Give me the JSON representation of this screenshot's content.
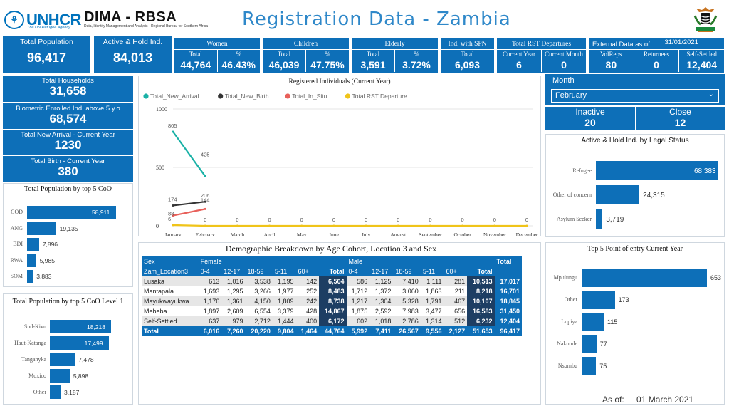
{
  "header": {
    "logo_text": "UNHCR",
    "logo_sub": "The UN Refugee Agency",
    "brand": "DIMA - RBSA",
    "brand_sub": "Data, Identity Management and Analysis - Regional Bureau for Southern Africa",
    "title": "Registration Data - Zambia"
  },
  "kpi": {
    "total_population": {
      "label": "Total Population",
      "value": "96,417"
    },
    "active_hold": {
      "label": "Active & Hold Ind.",
      "value": "84,013"
    },
    "women": {
      "label": "Women",
      "total_label": "Total",
      "pct_label": "%",
      "total": "44,764",
      "pct": "46.43%"
    },
    "children": {
      "label": "Children",
      "total_label": "Total",
      "pct_label": "%",
      "total": "46,039",
      "pct": "47.75%"
    },
    "elderly": {
      "label": "Elderly",
      "total_label": "Total",
      "pct_label": "%",
      "total": "3,591",
      "pct": "3.72%"
    },
    "spn": {
      "label": "Ind. with SPN",
      "total_label": "Total",
      "total": "6,093"
    },
    "rst": {
      "label": "Total RST Departures",
      "cy_label": "Current Year",
      "cm_label": "Current Month",
      "cy": "6",
      "cm": "0"
    },
    "external": {
      "label": "External Data as of",
      "date": "31/01/2021",
      "volreps_label": "VolReps",
      "returnees_label": "Returnees",
      "self_label": "Self-Settled",
      "volreps": "80",
      "returnees": "0",
      "self": "12,404"
    },
    "households": {
      "label": "Total Households",
      "value": "31,658"
    },
    "biometric": {
      "label": "Biometric Enrolled Ind. above 5 y.o",
      "value": "68,574"
    },
    "new_arrival": {
      "label": "Total New Arrival - Current Year",
      "value": "1230"
    },
    "birth": {
      "label": "Total Birth - Current Year",
      "value": "380"
    },
    "inactive": {
      "label": "Inactive",
      "value": "20"
    },
    "close": {
      "label": "Close",
      "value": "12"
    }
  },
  "month_filter": {
    "label": "Month",
    "selected": "February"
  },
  "coo_chart": {
    "title": "Total Population by top 5 CoO",
    "items": [
      {
        "label": "COD",
        "value": 58911,
        "display": "58,911"
      },
      {
        "label": "ANG",
        "value": 19135,
        "display": "19,135"
      },
      {
        "label": "BDI",
        "value": 7896,
        "display": "7,896"
      },
      {
        "label": "RWA",
        "value": 5985,
        "display": "5,985"
      },
      {
        "label": "SOM",
        "value": 3883,
        "display": "3,883"
      }
    ]
  },
  "coo_level1_chart": {
    "title": "Total Population by top 5 CoO Level 1",
    "items": [
      {
        "label": "Sud-Kivu",
        "value": 18218,
        "display": "18,218"
      },
      {
        "label": "Haut-Katanga",
        "value": 17499,
        "display": "17,499"
      },
      {
        "label": "Tanganyka",
        "value": 7478,
        "display": "7,478"
      },
      {
        "label": "Moxico",
        "value": 5898,
        "display": "5,898"
      },
      {
        "label": "Other",
        "value": 3187,
        "display": "3,187"
      }
    ]
  },
  "legal_status_chart": {
    "title": "Active & Hold  Ind. by Legal Status",
    "items": [
      {
        "label": "Refugee",
        "value": 68383,
        "display": "68,383"
      },
      {
        "label": "Other of concern",
        "value": 24315,
        "display": "24,315"
      },
      {
        "label": "Asylum Seeker",
        "value": 3719,
        "display": "3,719"
      }
    ]
  },
  "entry_chart": {
    "title": "Top 5 Point of entry Current Year",
    "items": [
      {
        "label": "Mpulungu",
        "value": 653,
        "display": "653"
      },
      {
        "label": "Other",
        "value": 173,
        "display": "173"
      },
      {
        "label": "Lupiya",
        "value": 115,
        "display": "115"
      },
      {
        "label": "Nakonde",
        "value": 77,
        "display": "77"
      },
      {
        "label": "Nsumbu",
        "value": 75,
        "display": "75"
      }
    ]
  },
  "chart_data": {
    "type": "line",
    "title": "Registered Individuals  (Current Year)",
    "categories": [
      "January",
      "February",
      "March",
      "April",
      "May",
      "June",
      "July",
      "August",
      "September",
      "October",
      "November",
      "December"
    ],
    "ylim": [
      0,
      1000
    ],
    "yticks": [
      0,
      500,
      1000
    ],
    "legend_position": "top-left",
    "series": [
      {
        "name": "Total_New_Arrival",
        "color": "#1ab1a6",
        "values": [
          805,
          425,
          null,
          null,
          null,
          null,
          null,
          null,
          null,
          null,
          null,
          null
        ]
      },
      {
        "name": "Total_New_Birth",
        "color": "#333333",
        "values": [
          174,
          206,
          null,
          null,
          null,
          null,
          null,
          null,
          null,
          null,
          null,
          null
        ]
      },
      {
        "name": "Total_In_Situ",
        "color": "#e8605a",
        "values": [
          88,
          144,
          null,
          null,
          null,
          null,
          null,
          null,
          null,
          null,
          null,
          null
        ]
      },
      {
        "name": "Total RST Departure",
        "color": "#f0c419",
        "values": [
          6,
          0,
          0,
          0,
          0,
          0,
          0,
          0,
          0,
          0,
          0,
          0
        ]
      }
    ]
  },
  "demo_table": {
    "title": "Demographic Breakdown by Age Cohort, Location 3 and Sex",
    "sex_label": "Sex",
    "loc_label": "Zam_Location3",
    "female_label": "Female",
    "male_label": "Male",
    "total_label": "Total",
    "cohorts": [
      "0-4",
      "12-17",
      "18-59",
      "5-11",
      "60+",
      "Total"
    ],
    "rows": [
      {
        "loc": "Lusaka",
        "f": [
          "613",
          "1,016",
          "3,538",
          "1,195",
          "142",
          "6,504"
        ],
        "m": [
          "586",
          "1,125",
          "7,410",
          "1,111",
          "281",
          "10,513"
        ],
        "total": "17,017"
      },
      {
        "loc": "Mantapala",
        "f": [
          "1,693",
          "1,295",
          "3,266",
          "1,977",
          "252",
          "8,483"
        ],
        "m": [
          "1,712",
          "1,372",
          "3,060",
          "1,863",
          "211",
          "8,218"
        ],
        "total": "16,701"
      },
      {
        "loc": "Mayukwayukwa",
        "f": [
          "1,176",
          "1,361",
          "4,150",
          "1,809",
          "242",
          "8,738"
        ],
        "m": [
          "1,217",
          "1,304",
          "5,328",
          "1,791",
          "467",
          "10,107"
        ],
        "total": "18,845"
      },
      {
        "loc": "Meheba",
        "f": [
          "1,897",
          "2,609",
          "6,554",
          "3,379",
          "428",
          "14,867"
        ],
        "m": [
          "1,875",
          "2,592",
          "7,983",
          "3,477",
          "656",
          "16,583"
        ],
        "total": "31,450"
      },
      {
        "loc": "Self-Settled",
        "f": [
          "637",
          "979",
          "2,712",
          "1,444",
          "400",
          "6,172"
        ],
        "m": [
          "602",
          "1,018",
          "2,786",
          "1,314",
          "512",
          "6,232"
        ],
        "total": "12,404"
      }
    ],
    "footer": {
      "loc": "Total",
      "f": [
        "6,016",
        "7,260",
        "20,220",
        "9,804",
        "1,464",
        "44,764"
      ],
      "m": [
        "5,992",
        "7,411",
        "26,567",
        "9,556",
        "2,127",
        "51,653"
      ],
      "total": "96,417"
    }
  },
  "as_of": {
    "label": "As of:",
    "date": "01 March 2021"
  }
}
